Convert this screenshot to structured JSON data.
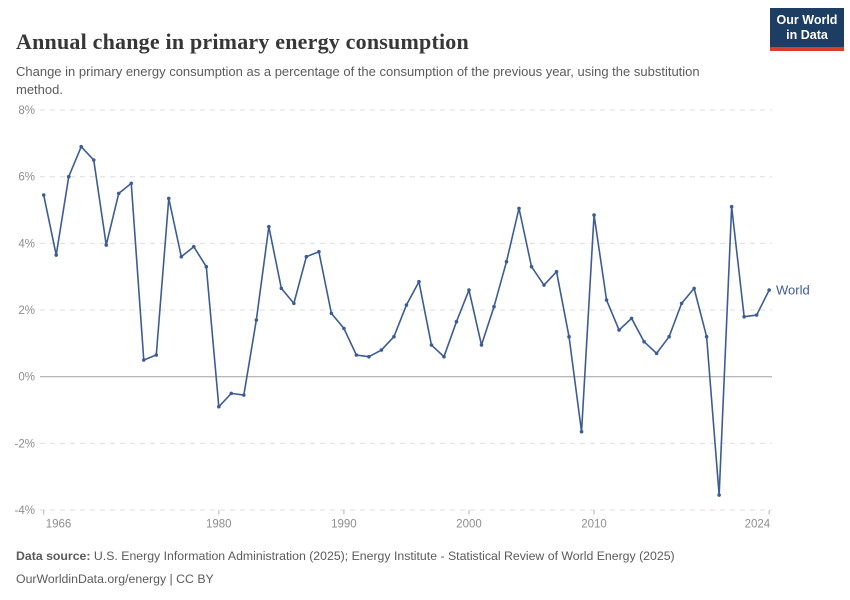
{
  "header": {
    "logo": {
      "line1": "Our World",
      "line2": "in Data"
    }
  },
  "footer": {
    "datasource_label": "Data source:",
    "datasource_text": " U.S. Energy Information Administration (2025); Energy Institute - Statistical Review of World Energy (2025)",
    "license_line": "OurWorldinData.org/energy | CC BY"
  },
  "colors": {
    "series": "#3d5c96",
    "grid": "#dedede",
    "zero_line": "#a1a1a1",
    "tick_mark": "#b3b3b3",
    "axis_text": "#8e8e8e",
    "title_text": "#373737",
    "subtitle_text": "#5b5b5b",
    "logo_bg": "#1d3d63",
    "logo_red": "#d93a34"
  },
  "chart_data": {
    "type": "line",
    "title": "Annual change in primary energy consumption",
    "subtitle": "Change in primary energy consumption as a percentage of the consumption of the previous year, using the substitution method.",
    "xlabel": "",
    "ylabel": "",
    "ylim": [
      -4,
      8
    ],
    "xlim": [
      1966,
      2024
    ],
    "grid": "horizontal-dashed, zero-line-solid",
    "legend_position": "right-of-last-point",
    "yticks": [
      {
        "value": 8,
        "label": "8%"
      },
      {
        "value": 6,
        "label": "6%"
      },
      {
        "value": 4,
        "label": "4%"
      },
      {
        "value": 2,
        "label": "2%"
      },
      {
        "value": 0,
        "label": "0%"
      },
      {
        "value": -2,
        "label": "-2%"
      },
      {
        "value": -4,
        "label": "-4%"
      }
    ],
    "xticks": [
      {
        "value": 1966,
        "label": "1966"
      },
      {
        "value": 1980,
        "label": "1980"
      },
      {
        "value": 1990,
        "label": "1990"
      },
      {
        "value": 2000,
        "label": "2000"
      },
      {
        "value": 2010,
        "label": "2010"
      },
      {
        "value": 2024,
        "label": "2024"
      }
    ],
    "series": [
      {
        "name": "World",
        "color": "#3d5c96",
        "years": [
          1966,
          1967,
          1968,
          1969,
          1970,
          1971,
          1972,
          1973,
          1974,
          1975,
          1976,
          1977,
          1978,
          1979,
          1980,
          1981,
          1982,
          1983,
          1984,
          1985,
          1986,
          1987,
          1988,
          1989,
          1990,
          1991,
          1992,
          1993,
          1994,
          1995,
          1996,
          1997,
          1998,
          1999,
          2000,
          2001,
          2002,
          2003,
          2004,
          2005,
          2006,
          2007,
          2008,
          2009,
          2010,
          2011,
          2012,
          2013,
          2014,
          2015,
          2016,
          2017,
          2018,
          2019,
          2020,
          2021,
          2022,
          2023,
          2024
        ],
        "values": [
          5.45,
          3.65,
          6.0,
          6.9,
          6.5,
          3.95,
          5.5,
          5.8,
          0.5,
          0.65,
          5.35,
          3.6,
          3.9,
          3.3,
          -0.9,
          -0.5,
          -0.55,
          1.7,
          4.5,
          2.65,
          2.2,
          3.6,
          3.75,
          1.9,
          1.45,
          0.65,
          0.6,
          0.8,
          1.2,
          2.15,
          2.85,
          0.95,
          0.6,
          1.65,
          2.6,
          0.95,
          2.1,
          3.45,
          5.05,
          3.3,
          2.75,
          3.15,
          1.2,
          -1.65,
          4.85,
          2.3,
          1.4,
          1.75,
          1.05,
          0.7,
          1.2,
          2.2,
          2.65,
          1.2,
          -3.55,
          5.1,
          1.8,
          1.85,
          2.6
        ]
      }
    ]
  }
}
